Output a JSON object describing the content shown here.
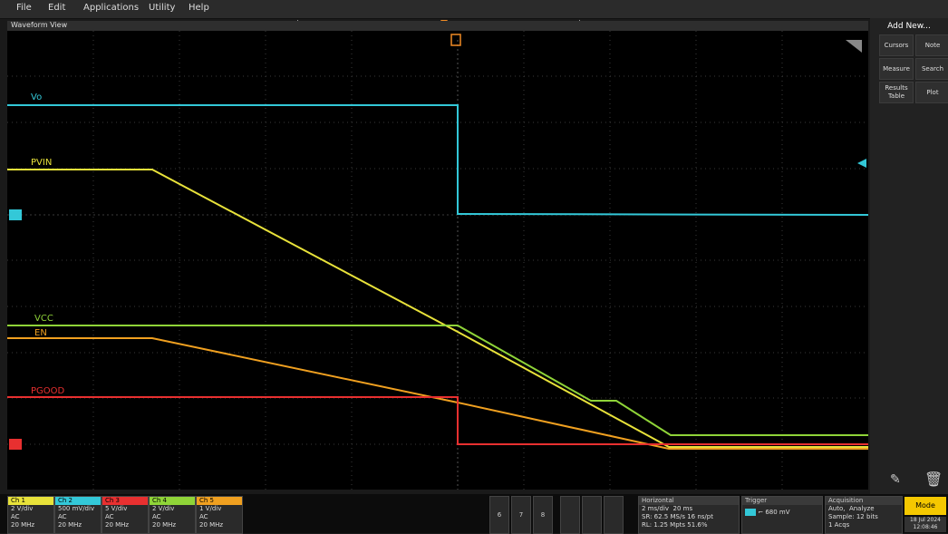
{
  "menu": [
    "File",
    "Edit",
    "Applications",
    "Utility",
    "Help"
  ],
  "waveform_view": {
    "title": "Waveform View",
    "trace_labels": {
      "vo": "Vo",
      "pvin": "PVIN",
      "vcc": "VCC",
      "en": "EN",
      "pgood": "PGOOD"
    },
    "colors": {
      "vo": "#33c8d8",
      "pvin": "#e8e23a",
      "vcc": "#8fd438",
      "en": "#f0a020",
      "pgood": "#e83030"
    }
  },
  "sidebar": {
    "title": "Add New...",
    "buttons": {
      "cursors": "Cursors",
      "note": "Note",
      "measure": "Measure",
      "search": "Search",
      "results_l1": "Results",
      "results_l2": "Table",
      "plot": "Plot"
    }
  },
  "channels": [
    {
      "name": "Ch 1",
      "scale": "2 V/div",
      "sub": "AC",
      "bw": "20 MHz",
      "color": "#e8e23a"
    },
    {
      "name": "Ch 2",
      "scale": "500 mV/div",
      "sub": "AC",
      "bw": "20 MHz",
      "color": "#33c8d8"
    },
    {
      "name": "Ch 3",
      "scale": "5 V/div",
      "sub": "AC",
      "bw": "20 MHz",
      "color": "#e83030"
    },
    {
      "name": "Ch 4",
      "scale": "2 V/div",
      "sub": "AC",
      "bw": "20 MHz",
      "color": "#8fd438"
    },
    {
      "name": "Ch 5",
      "scale": "1 V/div",
      "sub": "AC",
      "bw": "20 MHz",
      "color": "#f0a020"
    }
  ],
  "quick": {
    "n6": "6",
    "n7": "7",
    "n8": "8"
  },
  "horizontal": {
    "title": "Horizontal",
    "r1a": "2 ms/div",
    "r1b": "20 ms",
    "r2a": "SR: 62.5 MS/s",
    "r2b": "16 ns/pt",
    "r3a": "RL: 1.25 Mpts",
    "r3b": "51.6%"
  },
  "trigger": {
    "title": "Trigger",
    "value": "680 mV"
  },
  "acquisition": {
    "title": "Acquisition",
    "r1a": "Auto,",
    "r1b": "Analyze",
    "r2": "Sample: 12 bits",
    "r3": "1 Acqs"
  },
  "mode_label": "Mode",
  "datetime": {
    "date": "18 Jul 2024",
    "time": "12:08:46"
  }
}
